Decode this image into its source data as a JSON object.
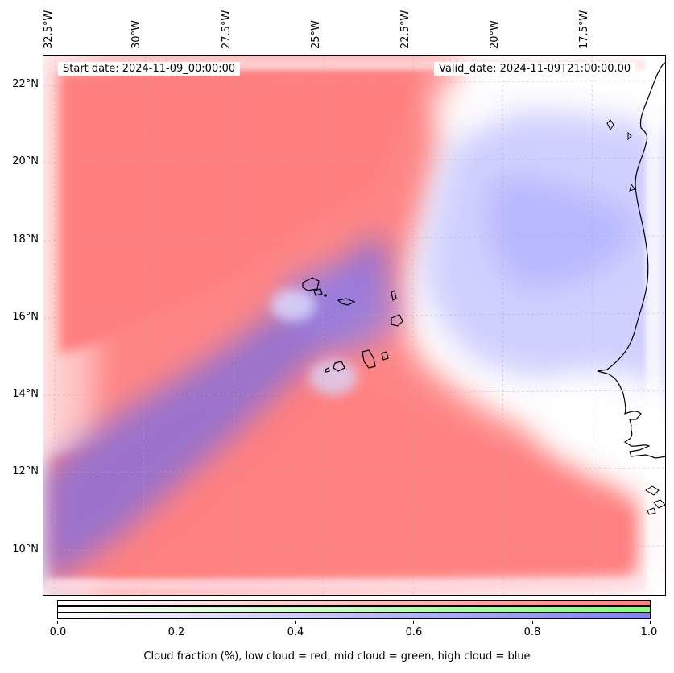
{
  "header": {
    "start_date": "Start date: 2024-11-09_00:00:00",
    "valid_date": "Valid_date: 2024-11-09T21:00:00.00"
  },
  "map": {
    "lon_ticks": [
      "32.5°W",
      "30°W",
      "27.5°W",
      "25°W",
      "22.5°W",
      "20°W",
      "17.5°W"
    ],
    "lat_ticks": [
      "22°N",
      "20°N",
      "18°N",
      "16°N",
      "14°N",
      "12°N",
      "10°N"
    ],
    "colors": {
      "low_cloud": "#ff7f7f",
      "mid_cloud": "#7fff7f",
      "high_cloud": "#7f7fff",
      "coast": "#000000"
    }
  },
  "colorbar": {
    "ticks": [
      "0.0",
      "0.2",
      "0.4",
      "0.6",
      "0.8",
      "1.0"
    ],
    "label": "Cloud fraction (%), low cloud = red, mid cloud = green, high cloud = blue"
  }
}
